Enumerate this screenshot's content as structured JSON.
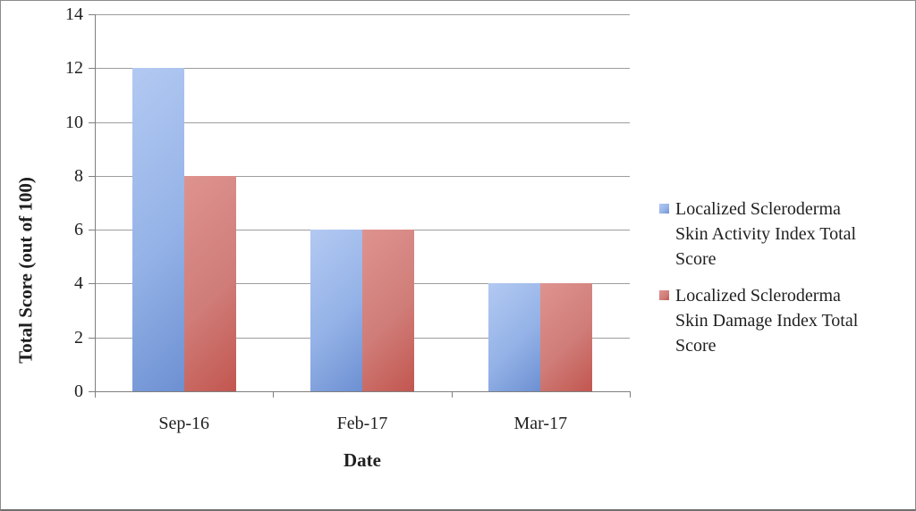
{
  "frame": {
    "background": "#ffffff",
    "border_color": "#8c8c8c"
  },
  "chart_data": {
    "type": "bar",
    "title": "",
    "xlabel": "Date",
    "ylabel": "Total Score (out of 100)",
    "categories": [
      "Sep-16",
      "Feb-17",
      "Mar-17"
    ],
    "series": [
      {
        "name": "Localized Scleroderma Skin Activity Index Total Score",
        "values": [
          12,
          6,
          4
        ],
        "color": "#94b2e7",
        "gradient": [
          "#b3c9f2",
          "#6d90d2"
        ]
      },
      {
        "name": "Localized Scleroderma Skin Damage Index Total Score",
        "values": [
          8,
          6,
          4
        ],
        "color": "#d07d79",
        "gradient": [
          "#de938f",
          "#c2564f"
        ]
      }
    ],
    "ylim": [
      0,
      14
    ],
    "y_ticks": [
      0,
      2,
      4,
      6,
      8,
      10,
      12,
      14
    ],
    "grid": "horizontal",
    "legend_position": "right",
    "gridline_color": "#9d9d9d",
    "axis_color": "#7f7f7f",
    "text_color": "#1f1f1f"
  }
}
